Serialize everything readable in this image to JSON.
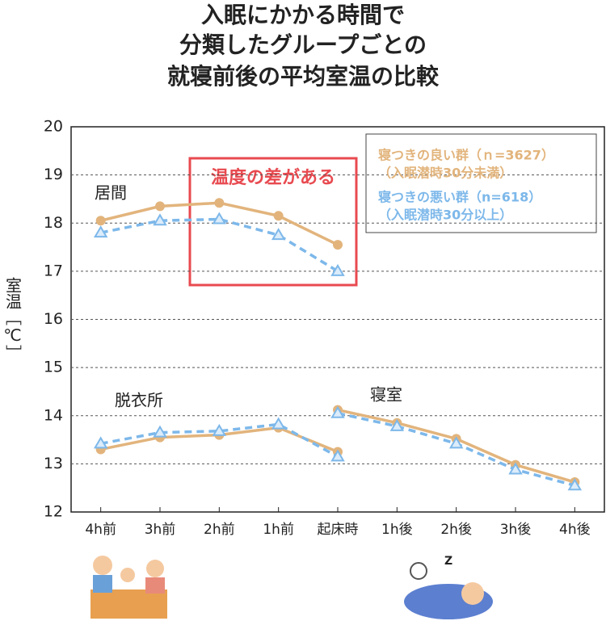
{
  "chart_data": {
    "type": "line",
    "title": [
      "入眠にかかる時間で",
      "分類したグループごとの",
      "就寝前後の平均室温の比較"
    ],
    "y_label": "室温［℃］",
    "annotation": "温度の差がある",
    "categories": [
      "4h前",
      "3h前",
      "2h前",
      "1h前",
      "起床時",
      "1h後",
      "2h後",
      "3h後",
      "4h後"
    ],
    "rooms": [
      "居間",
      "脱衣所",
      "寝室"
    ],
    "ylim": [
      12,
      20
    ],
    "yticks": [
      12,
      13,
      14,
      15,
      16,
      17,
      18,
      19,
      20
    ],
    "grid": true,
    "series": [
      {
        "name": "寝つきの良い群（ｎ=3627）",
        "sublabel": "（入眠潜時30分未満）",
        "color": "#e2b47c",
        "dashed": false,
        "marker": "circle",
        "lines": [
          [
            18.05,
            18.35,
            18.42,
            18.15,
            17.55,
            null,
            null,
            null,
            null
          ],
          [
            13.3,
            13.55,
            13.6,
            13.75,
            13.25,
            null,
            null,
            null,
            null
          ],
          [
            null,
            null,
            null,
            null,
            14.12,
            13.85,
            13.52,
            12.98,
            12.62
          ]
        ]
      },
      {
        "name": "寝つきの悪い群（n=618）",
        "sublabel": "（入眠潜時30分以上）",
        "color": "#7db8ea",
        "dashed": true,
        "marker": "triangle",
        "lines": [
          [
            17.8,
            18.05,
            18.08,
            17.75,
            17.0,
            null,
            null,
            null,
            null
          ],
          [
            13.42,
            13.65,
            13.68,
            13.82,
            13.15,
            null,
            null,
            null,
            null
          ],
          [
            null,
            null,
            null,
            null,
            14.05,
            13.78,
            13.42,
            12.88,
            12.55
          ]
        ]
      }
    ]
  }
}
